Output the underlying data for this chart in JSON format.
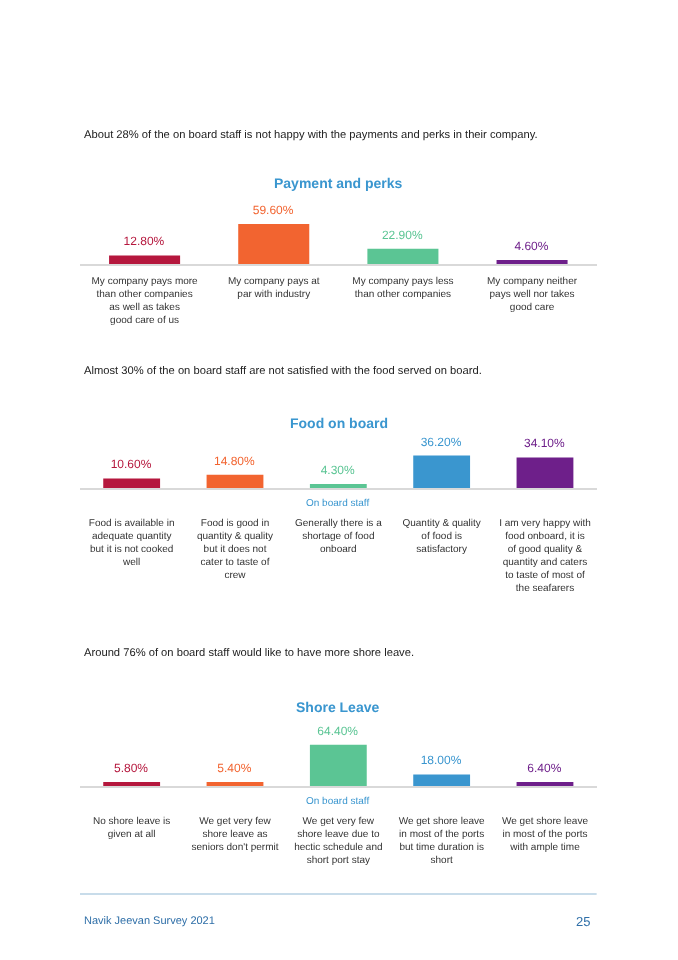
{
  "chart_data": [
    {
      "type": "bar",
      "title": "Payment and perks",
      "categories": [
        "My company pays more than other companies as well as takes good care of us",
        "My company pays at par with industry",
        "My company pays less than other companies",
        "My company neither pays well nor takes good care"
      ],
      "values": [
        12.8,
        59.6,
        22.9,
        4.6
      ],
      "colors": [
        "#b5173d",
        "#f26430",
        "#5bc594",
        "#6e1f8a"
      ],
      "value_labels": [
        "12.80%",
        "59.60%",
        "22.90%",
        "4.60%"
      ],
      "annotations": [
        "About 28% of the on board staff is not happy with the payments and perks in their company."
      ]
    },
    {
      "type": "bar",
      "title": "Food on board",
      "xlabel": "On board staff",
      "categories": [
        "Food is available in adequate quantity but it is not cooked well",
        "Food is good in quantity & quality but it does not cater to taste of crew",
        "Generally there is a shortage of food onboard",
        "Quantity & quality of food is satisfactory",
        "I am very happy with food onboard, it is of good quality & quantity and caters to taste of most of the seafarers"
      ],
      "values": [
        10.6,
        14.8,
        4.3,
        36.2,
        34.1
      ],
      "colors": [
        "#b5173d",
        "#f26430",
        "#5bc594",
        "#3a96cf",
        "#6e1f8a"
      ],
      "value_labels": [
        "10.60%",
        "14.80%",
        "4.30%",
        "36.20%",
        "34.10%"
      ],
      "annotations": [
        "Almost 30% of the on board staff are not satisfied with the food served on board."
      ]
    },
    {
      "type": "bar",
      "title": "Shore Leave",
      "xlabel": "On board staff",
      "categories": [
        "No shore leave is given at all",
        "We get very few shore leave as seniors don't permit",
        "We get very few shore leave due to hectic schedule and short port stay",
        "We get shore leave in most of the ports but time duration is short",
        "We get shore leave in most of the ports with ample time"
      ],
      "values": [
        5.8,
        5.4,
        64.4,
        18.0,
        6.4
      ],
      "colors": [
        "#b5173d",
        "#f26430",
        "#5bc594",
        "#3a96cf",
        "#6e1f8a"
      ],
      "value_labels": [
        "5.80%",
        "5.40%",
        "64.40%",
        "18.00%",
        "6.40%"
      ],
      "annotations": [
        "Around 76% of on board staff would like to have more shore leave.",
        "Navik Jeevan Survey 2021",
        "25"
      ]
    }
  ]
}
